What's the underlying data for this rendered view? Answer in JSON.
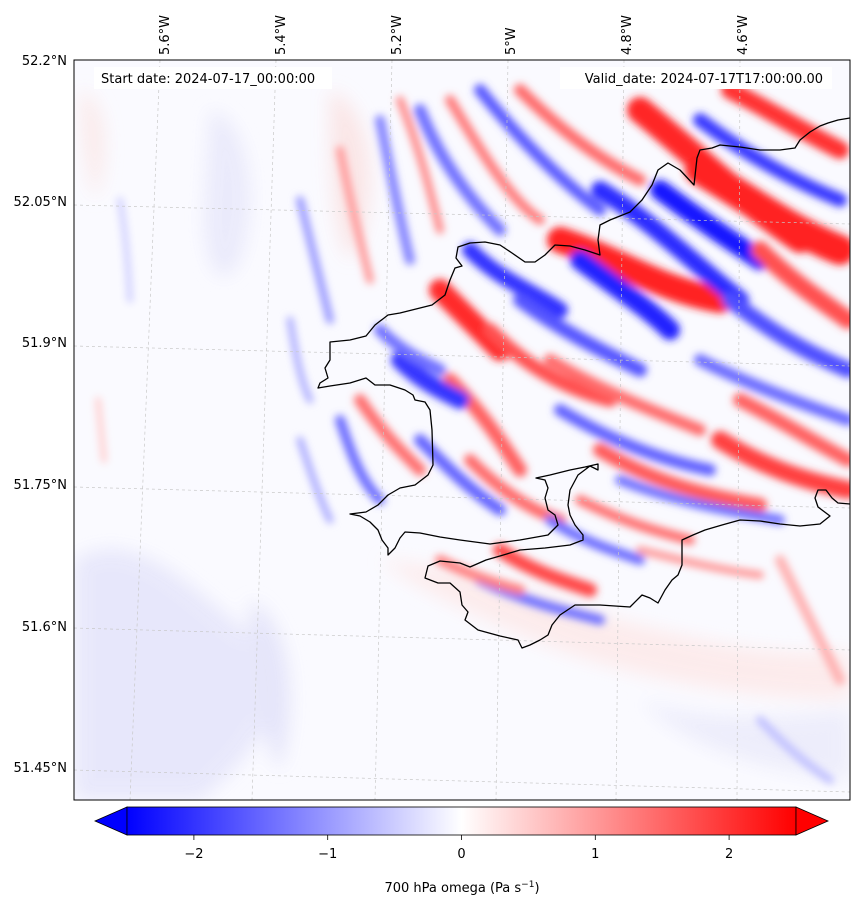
{
  "map": {
    "start_label": "Start date: 2024-07-17_00:00:00",
    "valid_label": "Valid_date: 2024-07-17T17:00:00.00",
    "lon_labels": [
      "5.6°W",
      "5.4°W",
      "5.2°W",
      "5°W",
      "4.8°W",
      "4.6°W"
    ],
    "lat_labels": [
      "52.2°N",
      "52.05°N",
      "51.9°N",
      "51.75°N",
      "51.6°N",
      "51.45°N"
    ],
    "field": "700 hPa omega"
  },
  "colorbar": {
    "label_text": "700 hPa omega (Pa s",
    "label_sup": "−1",
    "label_close": ")",
    "ticks": [
      "−2",
      "−1",
      "0",
      "1",
      "2"
    ],
    "tick_values": [
      -2,
      -1,
      0,
      1,
      2
    ],
    "range": [
      -2.5,
      2.5
    ],
    "low_color": "#0000ff",
    "mid_color": "#ffffff",
    "high_color": "#ff0000",
    "extend": "both"
  }
}
